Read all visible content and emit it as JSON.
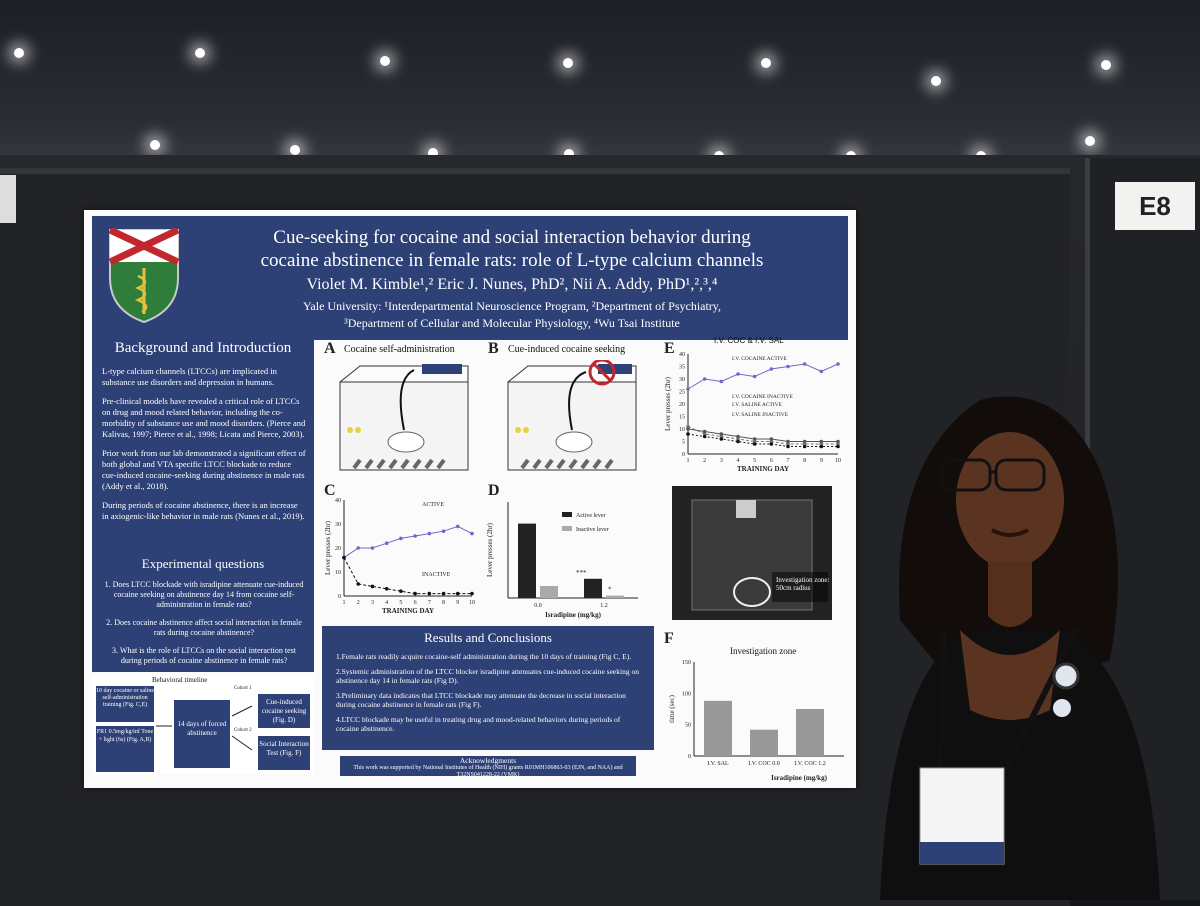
{
  "booth": {
    "number": "E8"
  },
  "poster": {
    "title_line1": "Cue-seeking for cocaine and social interaction behavior during",
    "title_line2": "cocaine abstinence in female rats: role of L-type calcium channels",
    "authors": "Violet M. Kimble¹,² Eric J. Nunes, PhD², Nii A. Addy, PhD¹,²,³,⁴",
    "affiliation_line1": "Yale University: ¹Interdepartmental Neuroscience Program, ²Department of Psychiatry,",
    "affiliation_line2": "³Department of Cellular and Molecular Physiology, ⁴Wu Tsai Institute",
    "background": {
      "title": "Background and Introduction",
      "bullets": [
        "L-type calcium channels (LTCCs) are implicated in substance use disorders and depression in humans.",
        "Pre-clinical models have revealed a critical role of LTCCs on drug and mood related behavior, including the co-morbidity of substance use and mood disorders. (Pierce and Kalivas, 1997; Pierce et al., 1998; Licata and Pierce, 2003).",
        "Prior work from our lab demonstrated a significant effect of both global and VTA specific LTCC blockade to reduce cue-induced cocaine-seeking during abstinence in male rats (Addy et al., 2018).",
        "During periods of cocaine abstinence, there is an increase in axiogenic-like behavior in male rats (Nunes et al., 2019)."
      ]
    },
    "questions": {
      "title": "Experimental questions",
      "items": [
        "1. Does LTCC blockade with isradipine attenuate cue-induced cocaine seeking on abstinence day 14 from cocaine self-administration in female rats?",
        "2. Does cocaine abstinence affect social interaction in female rats during cocaine abstinence?",
        "3. What is the role of LTCCs on the social interaction test during periods of cocaine abstinence in female rats?"
      ]
    },
    "timeline": {
      "title": "Behavioral timeline",
      "box1": "10 day cocaine or saline self-administration training (Fig. C,E)",
      "box1b": "FR1 0.5mg/kg/inf Tone + light (6s) (Fig. A,B)",
      "box2": "14 days of forced abstinence",
      "cohort1": "Cohort 1",
      "cohort2": "Cohort 2",
      "box3": "Cue-induced cocaine seeking (Fig. D)",
      "box4": "Social Interaction Test (Fig. F)"
    },
    "panels": {
      "A": "A",
      "A_caption": "Cocaine self-administration",
      "B": "B",
      "B_caption": "Cue-induced cocaine seeking",
      "C": "C",
      "D": "D",
      "E": "E",
      "F": "F",
      "E_title": "I.V. COC & I.V. SAL",
      "F_title": "Investigation zone",
      "photo_label": "Investigation zone: 50cm radius"
    },
    "results": {
      "title": "Results and Conclusions",
      "items": [
        "1.Female rats readily acquire cocaine-self administration during the 10 days of training (Fig C, E).",
        "2.Systemic administration of the LTCC blocker isradipine attenuates cue-induced cocaine seeking on abstinence day 14 in female rats (Fig D).",
        "3.Preliminary data indicates that LTCC blockade may attenuate the decrease in social interaction during cocaine abstinence in female rats (Fig F).",
        "4.LTCC blockade may be useful in treating drug and mood-related behaviors during periods of cocaine abstinence."
      ]
    },
    "acknowledgments": {
      "title": "Acknowledgments",
      "text": "This work was supported by National Institutes of Health (NIH) grants R01MH106863-03 (EJN, and NAA) and T32NS041228-22 (VMK)"
    }
  },
  "chart_data": [
    {
      "type": "line",
      "panel": "C",
      "xlabel": "TRAINING DAY",
      "ylabel": "Lever presses (2hr)",
      "x": [
        1,
        2,
        3,
        4,
        5,
        6,
        7,
        8,
        9,
        10
      ],
      "ylim": [
        0,
        40
      ],
      "yticks": [
        0,
        10,
        20,
        30,
        40
      ],
      "series": [
        {
          "name": "ACTIVE",
          "values": [
            16,
            20,
            20,
            22,
            24,
            25,
            26,
            27,
            29,
            26
          ]
        },
        {
          "name": "INACTIVE",
          "values": [
            16,
            5,
            4,
            3,
            2,
            1,
            1,
            1,
            1,
            1
          ]
        }
      ]
    },
    {
      "type": "bar",
      "panel": "D",
      "xlabel": "Isradipine (mg/kg)",
      "ylabel": "Lever presses (2hr)",
      "categories": [
        "0.0",
        "1.2"
      ],
      "ylim": [
        0,
        40
      ],
      "series": [
        {
          "name": "Active lever",
          "values": [
            31,
            8
          ]
        },
        {
          "name": "Inactive lever",
          "values": [
            5,
            1
          ]
        }
      ],
      "annotations": [
        "***",
        "*"
      ]
    },
    {
      "type": "line",
      "panel": "E",
      "xlabel": "TRAINING DAY",
      "ylabel": "Lever presses (2hr)",
      "x": [
        1,
        2,
        3,
        4,
        5,
        6,
        7,
        8,
        9,
        10
      ],
      "ylim": [
        0,
        40
      ],
      "yticks": [
        0,
        5,
        10,
        15,
        20,
        25,
        30,
        35,
        40
      ],
      "series": [
        {
          "name": "I.V. COCAINE ACTIVE",
          "values": [
            26,
            30,
            29,
            32,
            31,
            34,
            35,
            36,
            33,
            36
          ]
        },
        {
          "name": "I.V. COCAINE INACTIVE",
          "values": [
            11,
            8,
            7,
            6,
            5,
            5,
            4,
            4,
            4,
            4
          ]
        },
        {
          "name": "I.V. SALINE ACTIVE",
          "values": [
            10,
            9,
            8,
            7,
            6,
            6,
            5,
            5,
            5,
            5
          ]
        },
        {
          "name": "I.V. SALINE INACTIVE",
          "values": [
            8,
            7,
            6,
            5,
            4,
            4,
            3,
            3,
            3,
            3
          ]
        }
      ]
    },
    {
      "type": "bar",
      "panel": "F",
      "xlabel": "Isradipine (mg/kg)",
      "ylabel": "time (sec)",
      "categories": [
        "I.V. SAL",
        "I.V. COC 0.0",
        "I.V. COC 1.2"
      ],
      "ylim": [
        0,
        150
      ],
      "yticks": [
        0,
        50,
        100,
        150
      ],
      "values": [
        88,
        42,
        75
      ]
    }
  ]
}
